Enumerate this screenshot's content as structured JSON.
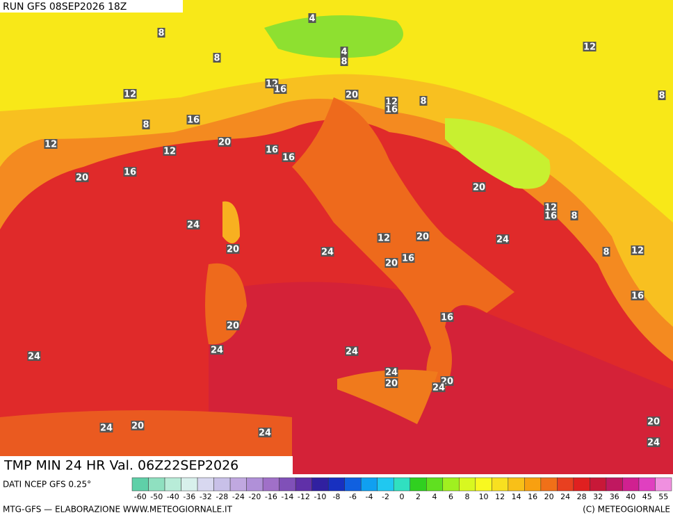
{
  "header": {
    "run": "RUN GFS 08SEP2026 18Z"
  },
  "footer": {
    "title": "TMP MIN 24 HR Val. 06Z22SEP2026",
    "source": "DATI NCEP GFS 0.25°",
    "credit_left": "MTG-GFS — ELABORAZIONE WWW.METEOGIORNALE.IT",
    "credit_right": "(C) METEOGIORNALE"
  },
  "scale": {
    "labels": [
      -60,
      -50,
      -40,
      -36,
      -32,
      -28,
      -24,
      -20,
      -16,
      -14,
      -12,
      -10,
      -8,
      -6,
      -4,
      -2,
      0,
      2,
      4,
      6,
      8,
      10,
      12,
      14,
      16,
      20,
      24,
      28,
      32,
      36,
      40,
      45,
      55
    ],
    "colors": [
      "#5fd0a8",
      "#8fe0c0",
      "#b8ecd8",
      "#d8f0ec",
      "#d8d8f0",
      "#c8c0e8",
      "#c0a8e0",
      "#b090d8",
      "#a070c8",
      "#8050b8",
      "#6030a8",
      "#3020a0",
      "#1830c0",
      "#1060e0",
      "#10a0f0",
      "#20c8f0",
      "#30e0c0",
      "#30d020",
      "#60e020",
      "#a0f020",
      "#d8f820",
      "#f8f820",
      "#f8e020",
      "#f8c018",
      "#f8a010",
      "#f07018",
      "#e84020",
      "#e02020",
      "#c81838",
      "#c01860",
      "#d02090",
      "#e040c0",
      "#f090e0"
    ]
  },
  "map_labels": [
    4,
    8,
    12,
    8,
    4,
    8,
    12,
    16,
    20,
    12,
    16,
    8,
    8,
    8,
    16,
    12,
    20,
    12,
    12,
    16,
    16,
    20,
    16,
    20,
    12,
    16,
    8,
    24,
    12,
    20,
    24,
    20,
    24,
    20,
    16,
    8,
    12,
    16,
    16,
    20,
    24,
    24,
    24,
    24,
    20,
    20,
    24,
    24,
    20,
    24,
    20,
    24
  ]
}
